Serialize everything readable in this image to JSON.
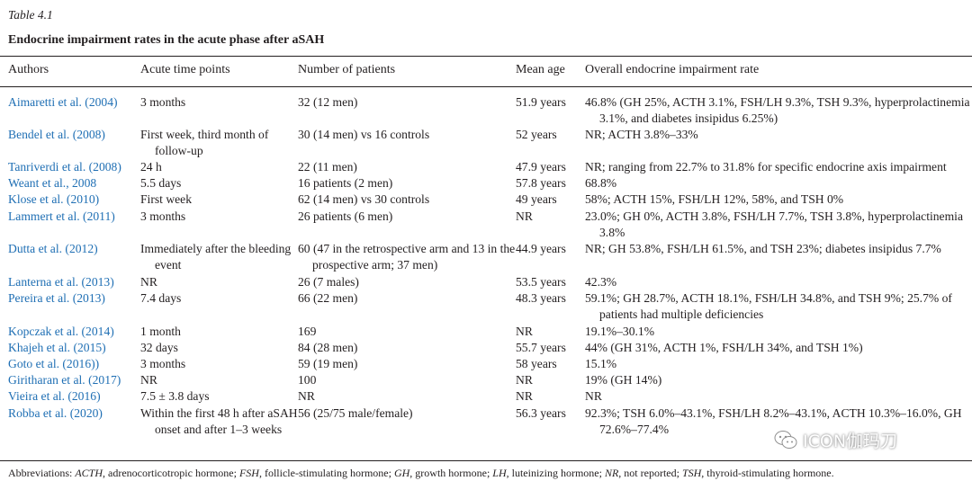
{
  "table_label": "Table 4.1",
  "caption": "Endocrine impairment rates in the acute phase after aSAH",
  "headers": [
    "Authors",
    "Acute time points",
    "Number of patients",
    "Mean age",
    "Overall endocrine impairment rate"
  ],
  "rows": [
    {
      "authors": "Aimaretti et al. (2004)",
      "time": "3 months",
      "patients": "32 (12 men)",
      "age": "51.9 years",
      "rate": "46.8% (GH 25%, ACTH 3.1%, FSH/LH 9.3%, TSH 9.3%, hyperprolactinemia 3.1%, and diabetes insipidus 6.25%)"
    },
    {
      "authors": "Bendel et al. (2008)",
      "time": "First week, third month of follow-up",
      "patients": "30 (14 men) vs 16 controls",
      "age": "52 years",
      "rate": "NR; ACTH 3.8%–33%"
    },
    {
      "authors": "Tanriverdi et al. (2008)",
      "time": "24 h",
      "patients": "22 (11 men)",
      "age": "47.9 years",
      "rate": "NR; ranging from 22.7% to 31.8% for specific endocrine axis impairment"
    },
    {
      "authors": "Weant et al., 2008",
      "time": "5.5 days",
      "patients": "16 patients (2 men)",
      "age": "57.8 years",
      "rate": "68.8%"
    },
    {
      "authors": "Klose et al. (2010)",
      "time": "First week",
      "patients": "62 (14 men) vs 30 controls",
      "age": "49 years",
      "rate": "58%; ACTH 15%, FSH/LH 12%, 58%, and TSH 0%"
    },
    {
      "authors": "Lammert et al. (2011)",
      "time": "3 months",
      "patients": "26 patients (6 men)",
      "age": "NR",
      "rate": "23.0%; GH 0%, ACTH 3.8%, FSH/LH 7.7%, TSH 3.8%, hyperprolactinemia 3.8%"
    },
    {
      "authors": "Dutta et al. (2012)",
      "time": "Immediately after the bleeding event",
      "patients": "60 (47 in the retrospective arm and 13 in the prospective arm; 37 men)",
      "age": "44.9 years",
      "rate": "NR; GH 53.8%, FSH/LH 61.5%, and TSH 23%; diabetes insipidus 7.7%"
    },
    {
      "authors": "Lanterna et al. (2013)",
      "time": "NR",
      "patients": "26 (7 males)",
      "age": "53.5 years",
      "rate": "42.3%"
    },
    {
      "authors": "Pereira et al. (2013)",
      "time": "7.4 days",
      "patients": "66 (22 men)",
      "age": "48.3 years",
      "rate": "59.1%; GH 28.7%, ACTH 18.1%, FSH/LH 34.8%, and TSH 9%; 25.7% of patients had multiple deficiencies"
    },
    {
      "authors": "Kopczak et al. (2014)",
      "time": "1 month",
      "patients": "169",
      "age": "NR",
      "rate": "19.1%–30.1%"
    },
    {
      "authors": "Khajeh et al. (2015)",
      "time": "32 days",
      "patients": "84 (28 men)",
      "age": "55.7 years",
      "rate": "44% (GH 31%, ACTH 1%, FSH/LH 34%, and TSH 1%)"
    },
    {
      "authors": "Goto et al. (2016))",
      "time": "3 months",
      "patients": "59 (19 men)",
      "age": "58 years",
      "rate": "15.1%"
    },
    {
      "authors": "Giritharan et al. (2017)",
      "time": "NR",
      "patients": "100",
      "age": "NR",
      "rate": "19% (GH 14%)"
    },
    {
      "authors": "Vieira et al. (2016)",
      "time": "7.5 ± 3.8 days",
      "patients": "NR",
      "age": "NR",
      "rate": "NR"
    },
    {
      "authors": "Robba et al. (2020)",
      "time": "Within the first 48 h after aSAH onset and after 1–3 weeks",
      "patients": "56 (25/75 male/female)",
      "age": "56.3 years",
      "rate": "92.3%; TSH 6.0%–43.1%, FSH/LH 8.2%–43.1%, ACTH 10.3%–16.0%, GH 72.6%–77.4%"
    }
  ],
  "footnote": {
    "lead": "Abbreviations: ",
    "items": [
      {
        "abbr": "ACTH",
        "def": ", adrenocorticotropic hormone; "
      },
      {
        "abbr": "FSH",
        "def": ", follicle-stimulating hormone; "
      },
      {
        "abbr": "GH",
        "def": ", growth hormone; "
      },
      {
        "abbr": "LH",
        "def": ", luteinizing hormone; "
      },
      {
        "abbr": "NR",
        "def": ", not reported; "
      },
      {
        "abbr": "TSH",
        "def": ", thyroid-stimulating hormone."
      }
    ]
  },
  "watermark": {
    "icon": "wechat-icon",
    "text": "ICON伽玛刀"
  }
}
